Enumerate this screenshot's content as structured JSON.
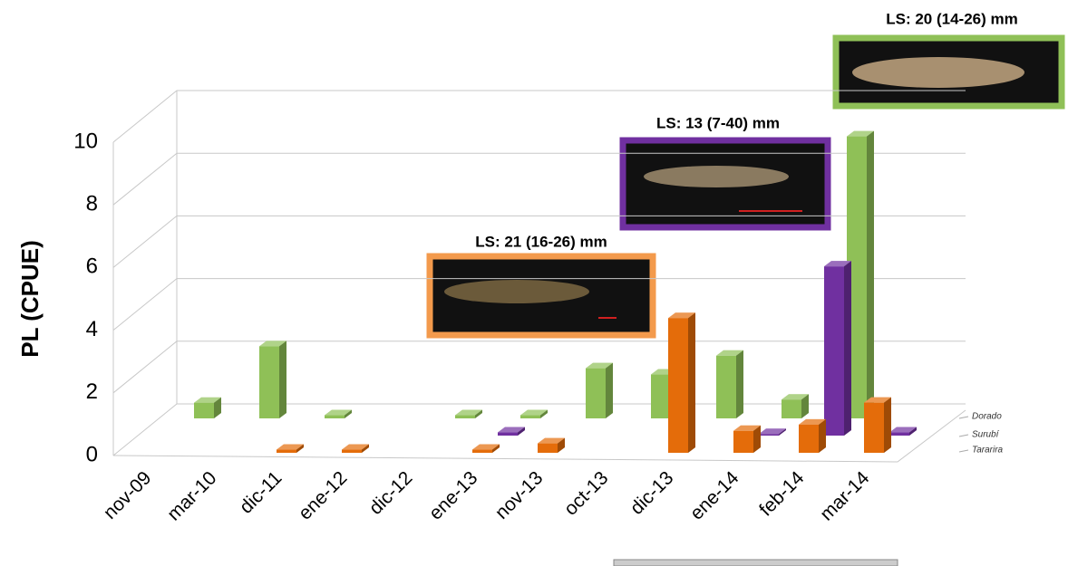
{
  "chart_data": {
    "type": "bar",
    "y_label": "PL (CPUE)",
    "categories": [
      "nov-09",
      "mar-10",
      "dic-11",
      "ene-12",
      "dic-12",
      "ene-13",
      "nov-13",
      "oct-13",
      "dic-13",
      "ene-14",
      "feb-14",
      "mar-14"
    ],
    "series": [
      {
        "name": "Tararira",
        "color": "#e46c0a",
        "values": [
          null,
          null,
          0.1,
          0.1,
          null,
          0.1,
          0.3,
          null,
          4.3,
          0.7,
          0.9,
          1.6
        ]
      },
      {
        "name": "Surubí",
        "color": "#7030a0",
        "values": [
          null,
          null,
          null,
          null,
          null,
          0.1,
          null,
          null,
          null,
          0.05,
          5.4,
          0.1
        ]
      },
      {
        "name": "Dorado",
        "color": "#8fc057",
        "values": [
          null,
          0.5,
          2.3,
          0.1,
          null,
          0.1,
          0.1,
          1.6,
          1.4,
          2.0,
          0.6,
          9.0
        ]
      }
    ],
    "ylim": [
      0,
      10
    ],
    "yticks": [
      0,
      2,
      4,
      6,
      8,
      10
    ],
    "grid": true,
    "annotations": [
      "LS: 21 (16-26) mm",
      "LS: 13 (7-40) mm",
      "LS: 20 (14-26) mm"
    ]
  }
}
